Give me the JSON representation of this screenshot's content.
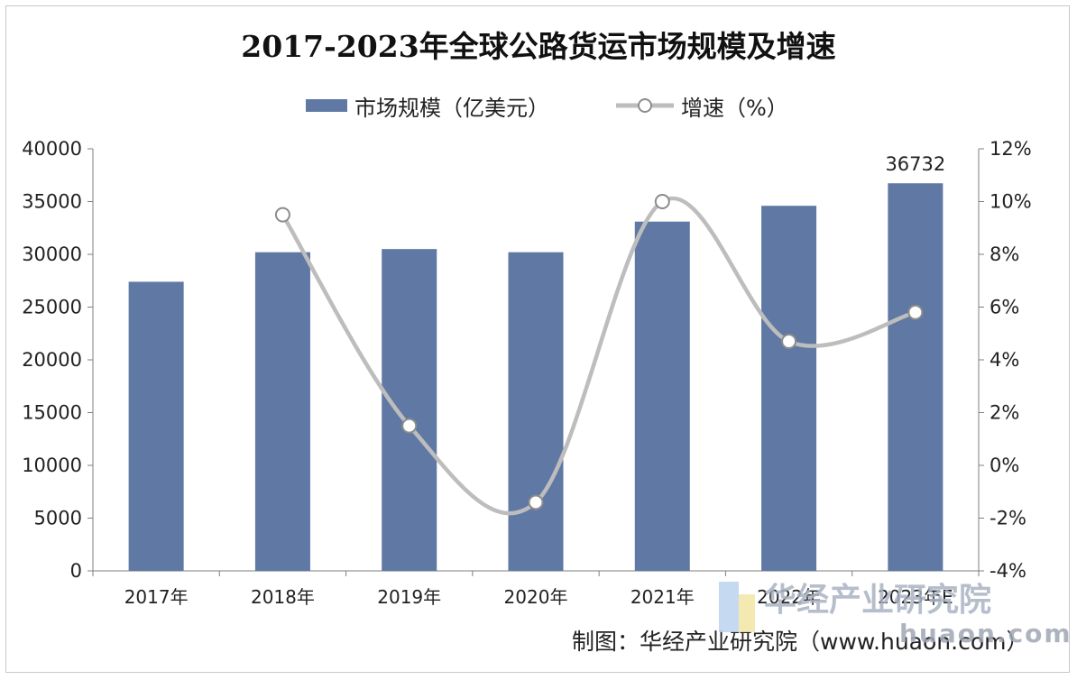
{
  "chart_data": {
    "type": "bar",
    "title": "2017-2023年全球公路货运市场规模及增速",
    "categories": [
      "2017年",
      "2018年",
      "2019年",
      "2020年",
      "2021年",
      "2022年",
      "2023年E"
    ],
    "series": [
      {
        "name": "市场规模（亿美元）",
        "type": "bar",
        "axis": "left",
        "values": [
          27400,
          30200,
          30500,
          30200,
          33100,
          34600,
          36732
        ]
      },
      {
        "name": "增速（%）",
        "type": "line",
        "axis": "right",
        "smooth": true,
        "values": [
          null,
          9.5,
          1.5,
          -1.4,
          10.0,
          4.7,
          5.8
        ]
      }
    ],
    "ylim_left": [
      0,
      40000
    ],
    "yticks_left": [
      "0",
      "5000",
      "10000",
      "15000",
      "20000",
      "25000",
      "30000",
      "35000",
      "40000"
    ],
    "ylim_right": [
      -4,
      12
    ],
    "yticks_right": [
      "-4%",
      "-2%",
      "0%",
      "2%",
      "4%",
      "6%",
      "8%",
      "10%",
      "12%"
    ],
    "data_labels": [
      {
        "category": "2023年E",
        "text": "36732"
      }
    ],
    "legend_position": "top-center",
    "grid": false,
    "colors": {
      "bar": "#5f79a4",
      "line": "#bdbdbd",
      "marker_fill": "#ffffff",
      "marker_stroke": "#8c8c8c"
    }
  },
  "source": "制图：华经产业研究院（www.huaon.com）",
  "watermark": {
    "name": "华经产业研究院",
    "url": "huaon.com"
  }
}
